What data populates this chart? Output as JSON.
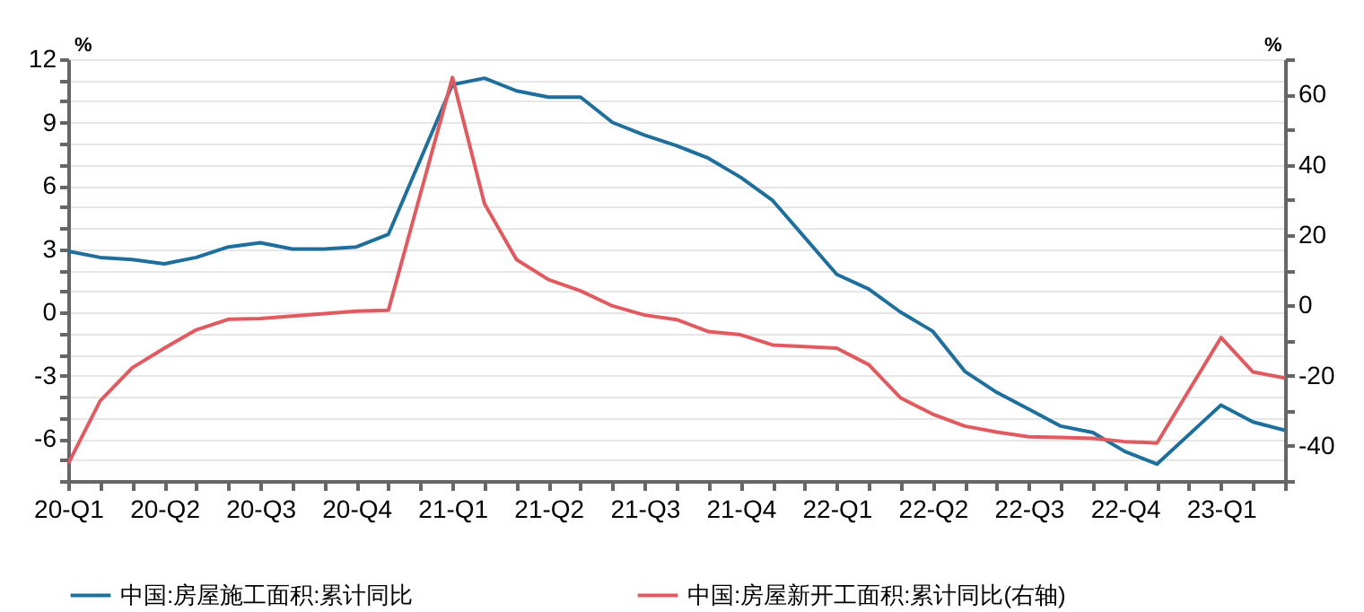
{
  "chart_data": {
    "type": "line",
    "categories": [
      "20-Q1",
      null,
      null,
      "20-Q2",
      null,
      null,
      "20-Q3",
      null,
      null,
      "20-Q4",
      null,
      null,
      "21-Q1",
      null,
      null,
      "21-Q2",
      null,
      null,
      "21-Q3",
      null,
      null,
      "21-Q4",
      null,
      null,
      "22-Q1",
      null,
      null,
      "22-Q2",
      null,
      null,
      "22-Q3",
      null,
      null,
      "22-Q4",
      null,
      null,
      "23-Q1",
      null,
      null
    ],
    "ylabel": "%",
    "y2label": "%",
    "ylim": [
      -8,
      12
    ],
    "yticks": [
      {
        "value": -8,
        "label": null
      },
      {
        "value": -7,
        "label": null
      },
      -6,
      {
        "value": -5,
        "label": null
      },
      {
        "value": -4,
        "label": null
      },
      -3,
      {
        "value": -2,
        "label": null
      },
      {
        "value": -1,
        "label": null
      },
      0,
      {
        "value": 1,
        "label": null
      },
      {
        "value": 2,
        "label": null
      },
      3,
      {
        "value": 4,
        "label": null
      },
      {
        "value": 5,
        "label": null
      },
      6,
      {
        "value": 7,
        "label": null
      },
      {
        "value": 8,
        "label": null
      },
      9,
      {
        "value": 10,
        "label": null
      },
      {
        "value": 11,
        "label": null
      },
      12
    ],
    "y2lim": [
      -50,
      70
    ],
    "y2ticks": [
      {
        "value": -50,
        "label": null
      },
      -40,
      {
        "value": -30,
        "label": null
      },
      -20,
      {
        "value": -10,
        "label": null
      },
      0,
      {
        "value": 10,
        "label": null
      },
      20,
      {
        "value": 30,
        "label": null
      },
      40,
      {
        "value": 50,
        "label": null
      },
      60,
      {
        "value": 70,
        "label": null
      }
    ],
    "grid": "y",
    "legend": "bottom",
    "series": [
      {
        "name": "中国:房屋施工面积:累计同比",
        "color": "#1f6f9c",
        "values": [
          2.9,
          2.6,
          2.5,
          2.3,
          2.6,
          3.1,
          3.3,
          3.0,
          3.0,
          3.1,
          3.7,
          null,
          10.8,
          11.1,
          10.5,
          10.2,
          10.2,
          9.0,
          8.4,
          7.9,
          7.3,
          6.4,
          5.3,
          null,
          1.8,
          1.1,
          0.0,
          -0.9,
          -2.8,
          -3.8,
          -4.6,
          -5.4,
          -5.7,
          -6.6,
          -7.2,
          null,
          -4.4,
          -5.2,
          -5.6
        ]
      },
      {
        "name": "中国:房屋新开工面积:累计同比(右轴)",
        "color": "#e05a5f",
        "axis": "y2",
        "values": [
          -45.1,
          -27.2,
          -17.8,
          -12.2,
          -7.0,
          -4.0,
          -3.8,
          -3.1,
          -2.4,
          -1.7,
          -1.4,
          null,
          64.8,
          28.9,
          13.0,
          7.3,
          4.1,
          -0.2,
          -2.8,
          -4.1,
          -7.5,
          -8.4,
          -11.3,
          null,
          -12.2,
          -16.9,
          -26.4,
          -31.0,
          -34.4,
          -36.1,
          -37.4,
          -37.6,
          -37.9,
          -38.8,
          -39.2,
          null,
          -9.2,
          -19.0,
          -20.7
        ]
      }
    ]
  }
}
